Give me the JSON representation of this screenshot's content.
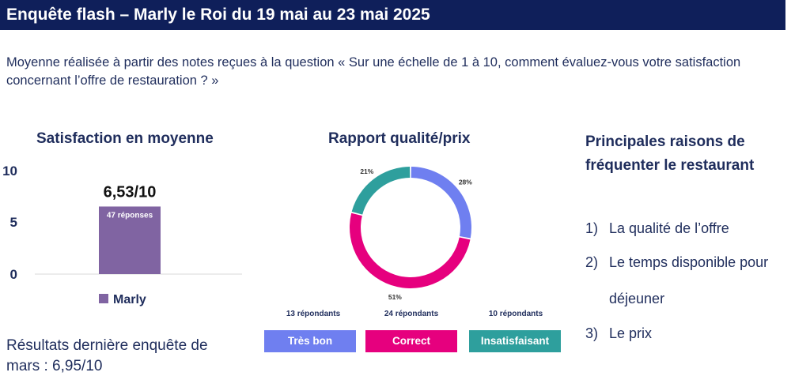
{
  "title": "Enquête flash – Marly le Roi du 19 mai au 23 mai 2025",
  "subtitle": "Moyenne réalisée à partir des notes reçues à la question « Sur une échelle de 1 à 10, comment évaluez-vous votre satisfaction concernant l’offre de restauration ? »",
  "satisfaction": {
    "title": "Satisfaction en moyenne",
    "value_label": "6,53/10",
    "bar_inner_label": "47 réponses",
    "previous_result": "Résultats dernière enquête de mars : 6,95/10"
  },
  "quality_price": {
    "title": "Rapport qualité/prix",
    "pct_labels": [
      "28%",
      "51%",
      "21%"
    ],
    "respondents": [
      "13 répondants",
      "24 répondants",
      "10 répondants"
    ],
    "categories": [
      "Très bon",
      "Correct",
      "Insatisfaisant"
    ]
  },
  "reasons": {
    "title": "Principales raisons de fréquenter le restaurant",
    "items": [
      {
        "num": "1)",
        "text": "La qualité de l’offre"
      },
      {
        "num": "2)",
        "text": "Le temps disponible pour"
      },
      {
        "num": "",
        "text": "déjeuner"
      },
      {
        "num": "3)",
        "text": "Le prix"
      }
    ]
  },
  "colors": {
    "bar": "#8064a2",
    "tres_bon": "#6f7ff0",
    "correct": "#e6007e",
    "insatisfaisant": "#2e9f9d"
  },
  "chart_data": [
    {
      "type": "bar",
      "title": "Satisfaction en moyenne",
      "categories": [
        "Marly"
      ],
      "values": [
        6.53
      ],
      "data_labels": [
        "6,53/10"
      ],
      "ylim": [
        0,
        10
      ],
      "yticks": [
        0,
        5,
        10
      ],
      "legend": "bottom"
    },
    {
      "type": "pie",
      "title": "Rapport qualité/prix",
      "labels": [
        "Très bon",
        "Correct",
        "Insatisfaisant"
      ],
      "values": [
        28,
        51,
        21
      ],
      "counts": [
        13,
        24,
        10
      ],
      "donut": true
    }
  ]
}
